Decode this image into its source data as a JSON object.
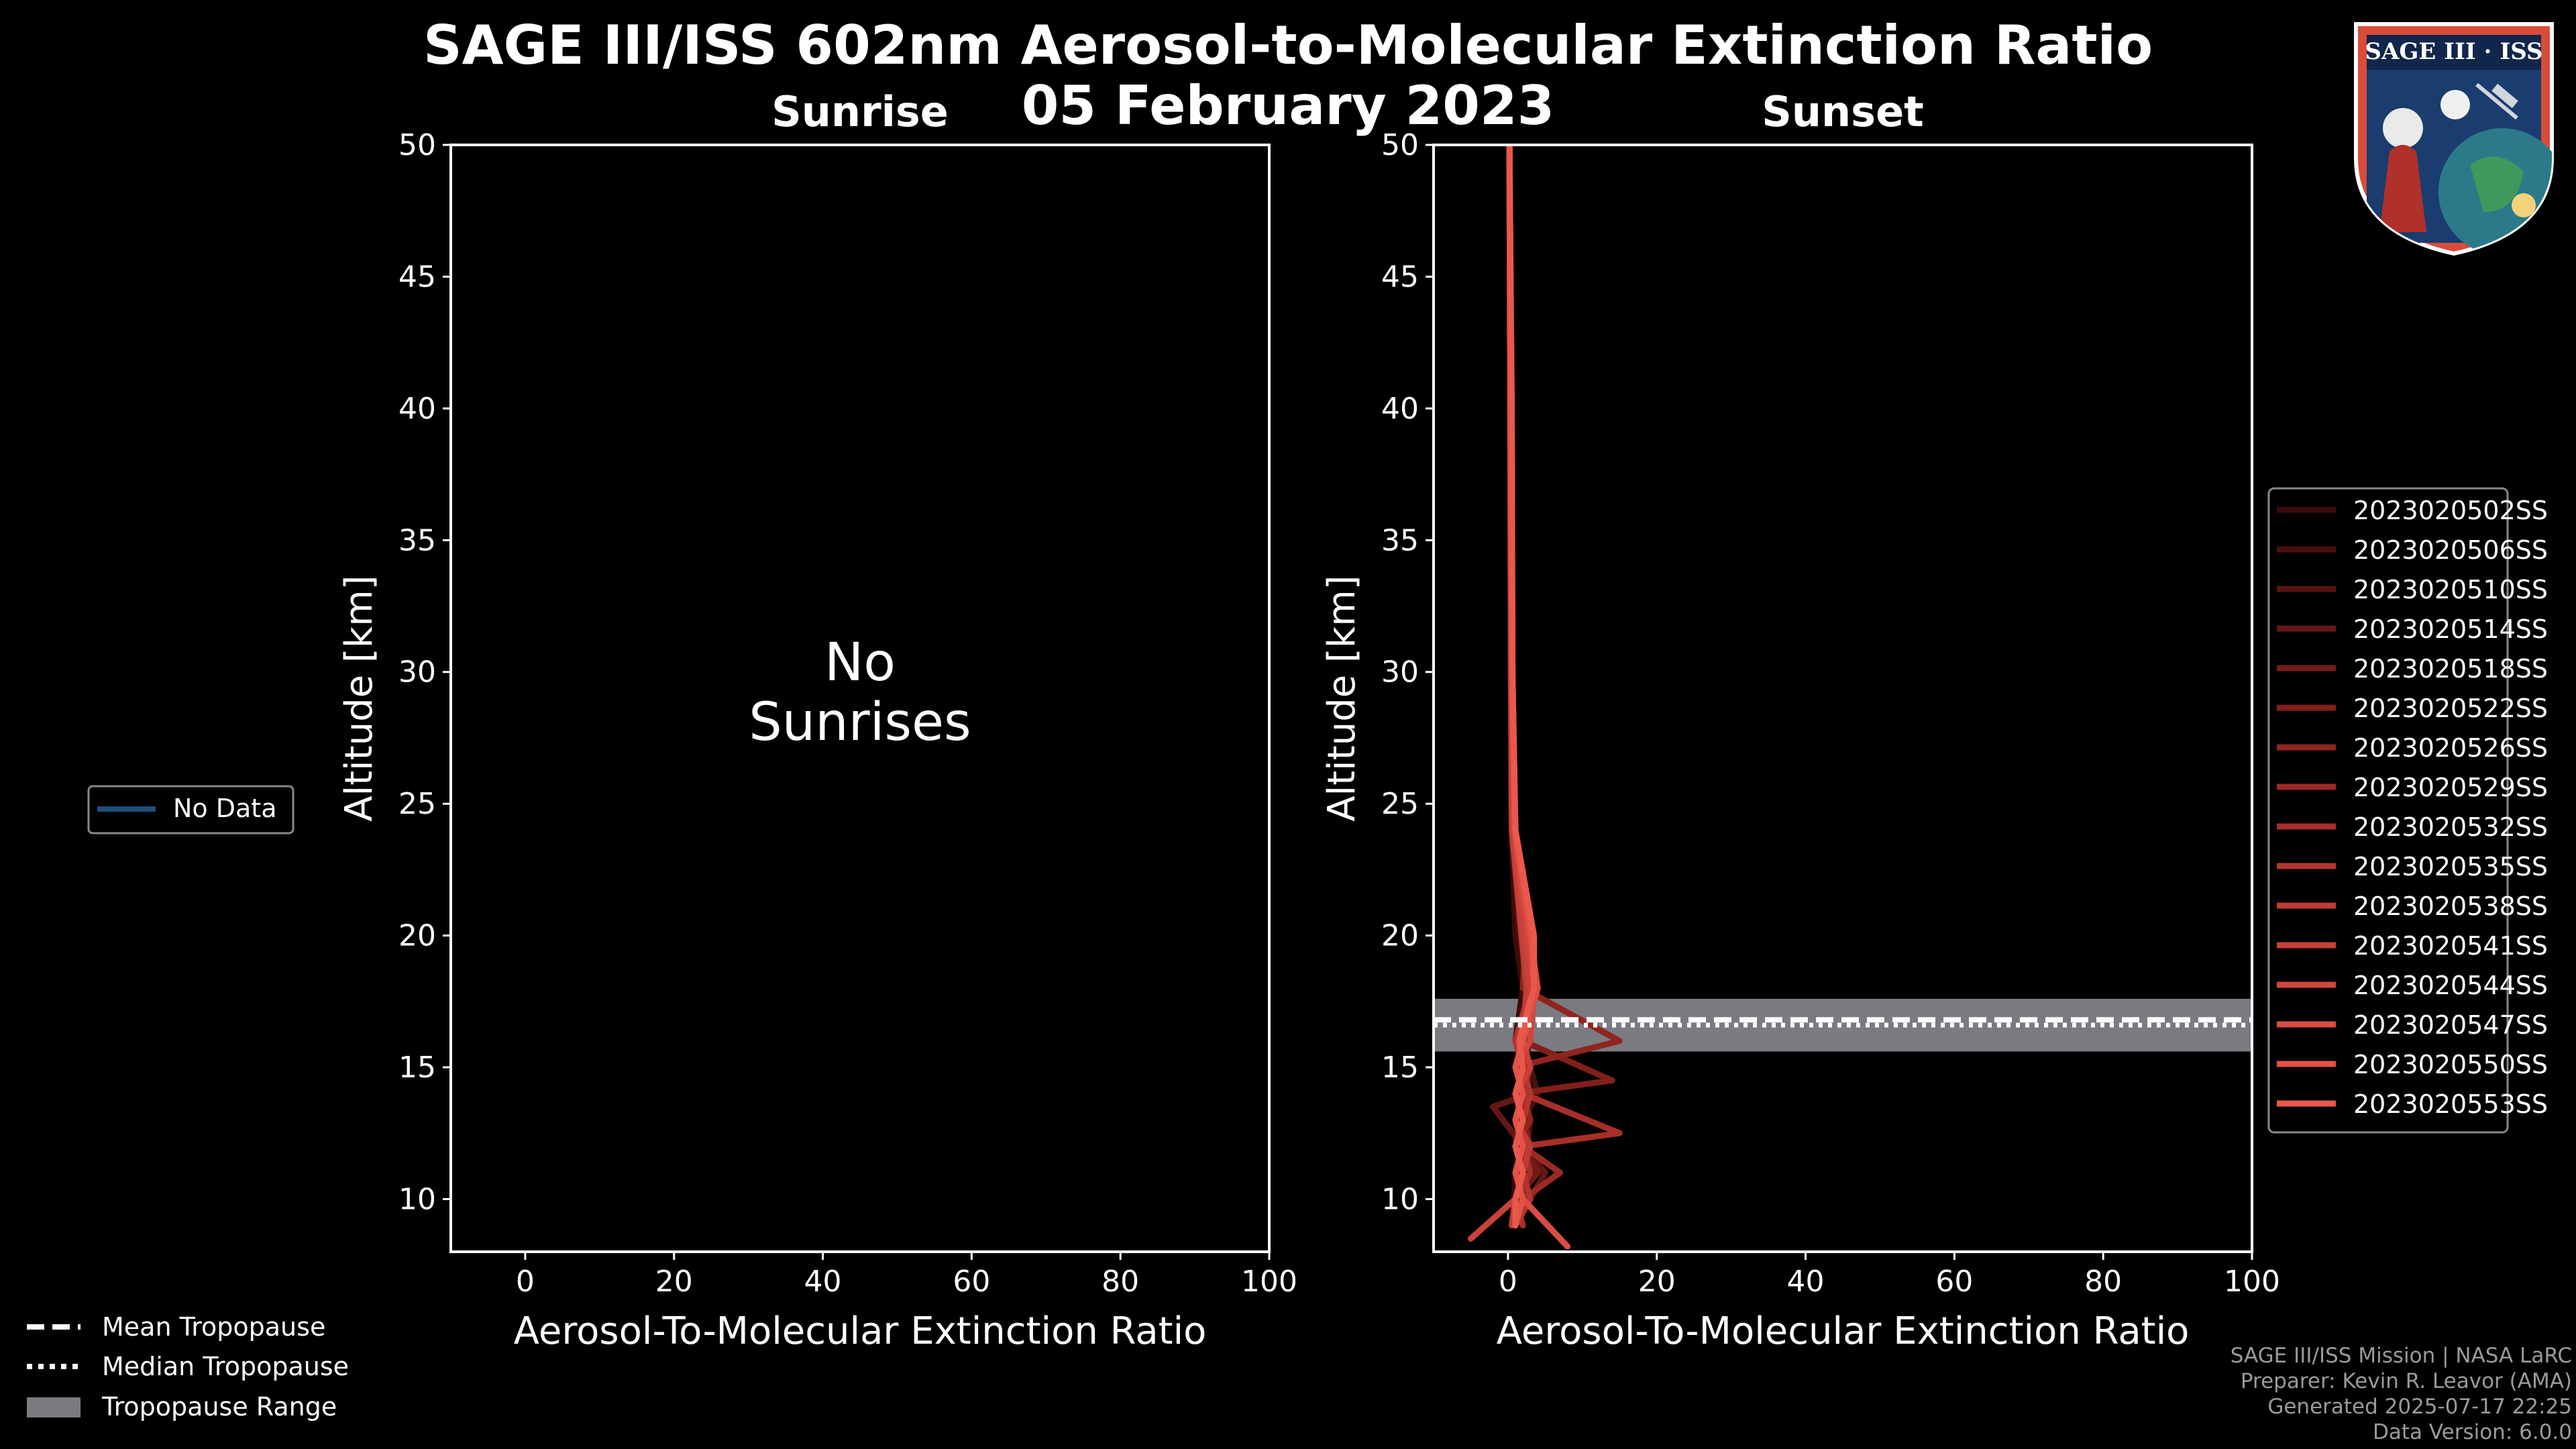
{
  "title_line1": "SAGE III/ISS 602nm Aerosol-to-Molecular Extinction Ratio",
  "title_line2": "05 February 2023",
  "logo": {
    "name": "SAGE III · ISS"
  },
  "footer": {
    "line1": "SAGE III/ISS Mission | NASA LaRC",
    "line2": "Preparer: Kevin R. Leavor (AMA)",
    "line3": "Generated 2025-07-17 22:25",
    "line4": "Data Version: 6.0.0"
  },
  "left_legend": {
    "label": "No Data",
    "color": "#1f4e79"
  },
  "bottom_legend": {
    "mean": "Mean Tropopause",
    "median": "Median Tropopause",
    "range": "Tropopause Range"
  },
  "chart_data": [
    {
      "type": "line",
      "title": "Sunrise",
      "xlabel": "Aerosol-To-Molecular Extinction Ratio",
      "ylabel": "Altitude [km]",
      "xlim": [
        -10,
        100
      ],
      "ylim": [
        8,
        50
      ],
      "xticks": [
        0,
        20,
        40,
        60,
        80,
        100
      ],
      "yticks": [
        10,
        15,
        20,
        25,
        30,
        35,
        40,
        45,
        50
      ],
      "annotation_line1": "No",
      "annotation_line2": "Sunrises",
      "series": []
    },
    {
      "type": "line",
      "title": "Sunset",
      "xlabel": "Aerosol-To-Molecular Extinction Ratio",
      "ylabel": "Altitude [km]",
      "xlim": [
        -10,
        100
      ],
      "ylim": [
        8,
        50
      ],
      "xticks": [
        0,
        20,
        40,
        60,
        80,
        100
      ],
      "yticks": [
        10,
        15,
        20,
        25,
        30,
        35,
        40,
        45,
        50
      ],
      "tropopause": {
        "mean": 16.8,
        "median": 16.6,
        "range": [
          15.6,
          17.6
        ]
      },
      "legend_placement": "right",
      "series": [
        {
          "name": "2023020502SS",
          "color": "#3a0b0b",
          "x": [
            0.5,
            0.8,
            1.0,
            1.5,
            2.0,
            2.5,
            3.0,
            1.0,
            2.0,
            1.0,
            0.5,
            0.5,
            0.3,
            0.2
          ],
          "y": [
            9,
            10,
            11,
            12,
            13,
            14,
            15,
            16,
            18,
            20,
            24,
            30,
            40,
            50
          ]
        },
        {
          "name": "2023020506SS",
          "color": "#470f0e",
          "x": [
            1.0,
            1.5,
            2.0,
            3.0,
            2.0,
            4.0,
            3.0,
            1.2,
            2.5,
            1.5,
            0.5,
            0.4,
            0.3,
            0.2
          ],
          "y": [
            9,
            10,
            11,
            12,
            13,
            14,
            15,
            16,
            18,
            20,
            24,
            30,
            40,
            50
          ]
        },
        {
          "name": "2023020510SS",
          "color": "#561311",
          "x": [
            0.8,
            2.0,
            1.5,
            2.5,
            3.0,
            2.0,
            1.5,
            3.0,
            3.0,
            1.8,
            0.6,
            0.5,
            0.3,
            0.2
          ],
          "y": [
            9,
            10,
            11,
            12,
            13,
            14,
            15,
            16,
            18,
            20,
            24,
            30,
            40,
            50
          ]
        },
        {
          "name": "2023020514SS",
          "color": "#641715",
          "x": [
            1.0,
            3.0,
            5.0,
            2.0,
            -2.0,
            3.0,
            2.0,
            2.0,
            3.5,
            2.0,
            0.6,
            0.5,
            0.4,
            0.2
          ],
          "y": [
            9,
            10,
            11,
            12,
            13.5,
            14,
            15,
            16,
            18,
            20,
            24,
            30,
            40,
            50
          ]
        },
        {
          "name": "2023020518SS",
          "color": "#731b18",
          "x": [
            2.0,
            1.0,
            4.0,
            2.0,
            1.0,
            3.0,
            2.0,
            3.0,
            3.0,
            2.2,
            0.5,
            0.5,
            0.3,
            0.2
          ],
          "y": [
            9,
            10,
            11,
            12,
            13,
            14,
            15,
            16,
            18,
            20,
            24,
            30,
            40,
            50
          ]
        },
        {
          "name": "2023020522SS",
          "color": "#821f1b",
          "x": [
            1.0,
            2.0,
            1.0,
            3.0,
            2.0,
            1.0,
            14.0,
            2.0,
            3.0,
            2.5,
            0.7,
            0.5,
            0.4,
            0.2
          ],
          "y": [
            9,
            10,
            11,
            12,
            13,
            14,
            14.5,
            16,
            18,
            20,
            24,
            30,
            40,
            50
          ]
        },
        {
          "name": "2023020526SS",
          "color": "#90241f",
          "x": [
            0.5,
            1.0,
            2.0,
            1.0,
            3.0,
            2.0,
            1.0,
            15.0,
            2.0,
            2.4,
            0.8,
            0.5,
            0.4,
            0.2
          ],
          "y": [
            9,
            10,
            11,
            12,
            13,
            14,
            15,
            16,
            18,
            20,
            24,
            30,
            40,
            50
          ]
        },
        {
          "name": "2023020529SS",
          "color": "#9c2a24",
          "x": [
            1.0,
            2.0,
            7.0,
            2.0,
            1.0,
            2.0,
            3.0,
            2.0,
            3.0,
            2.0,
            0.6,
            0.4,
            0.3,
            0.2
          ],
          "y": [
            9,
            10,
            11,
            12,
            13,
            14,
            15,
            16,
            18,
            20,
            24,
            30,
            40,
            50
          ]
        },
        {
          "name": "2023020532SS",
          "color": "#a82f29",
          "x": [
            2.0,
            1.0,
            3.0,
            2.0,
            15.0,
            2.0,
            1.0,
            2.0,
            3.0,
            2.2,
            0.7,
            0.5,
            0.3,
            0.2
          ],
          "y": [
            9,
            10,
            11,
            12,
            12.5,
            14,
            15,
            16,
            18,
            20,
            24,
            30,
            40,
            50
          ]
        },
        {
          "name": "2023020535SS",
          "color": "#b3352e",
          "x": [
            1.0,
            3.0,
            2.0,
            1.0,
            2.0,
            3.0,
            2.0,
            1.0,
            3.0,
            2.4,
            0.6,
            0.5,
            0.4,
            0.2
          ],
          "y": [
            9,
            10,
            11,
            12,
            13,
            14,
            15,
            16,
            18,
            20,
            24,
            30,
            40,
            50
          ]
        },
        {
          "name": "2023020538SS",
          "color": "#be3b33",
          "x": [
            0.5,
            1.0,
            2.0,
            3.0,
            1.0,
            2.0,
            1.0,
            2.0,
            2.5,
            1.8,
            0.5,
            0.4,
            0.3,
            0.2
          ],
          "y": [
            9,
            10,
            11,
            12,
            13,
            14,
            15,
            16,
            18,
            20,
            24,
            30,
            40,
            50
          ]
        },
        {
          "name": "2023020541SS",
          "color": "#c84138",
          "x": [
            -5.0,
            1.0,
            2.0,
            1.0,
            2.0,
            1.0,
            3.0,
            2.0,
            3.0,
            2.0,
            0.7,
            0.5,
            0.3,
            0.2
          ],
          "y": [
            8.5,
            10,
            11,
            12,
            13,
            14,
            15,
            16,
            18,
            20,
            24,
            30,
            40,
            50
          ]
        },
        {
          "name": "2023020544SS",
          "color": "#d1463d",
          "x": [
            1.0,
            2.0,
            1.0,
            2.0,
            1.0,
            2.0,
            1.0,
            3.0,
            3.5,
            2.6,
            0.8,
            0.6,
            0.4,
            0.2
          ],
          "y": [
            9,
            10,
            11,
            12,
            13,
            14,
            15,
            16,
            18,
            20,
            24,
            30,
            40,
            50
          ]
        },
        {
          "name": "2023020547SS",
          "color": "#da4c42",
          "x": [
            8.0,
            2.0,
            1.0,
            2.0,
            1.0,
            2.0,
            1.0,
            2.0,
            4.0,
            3.0,
            0.9,
            0.6,
            0.4,
            0.2
          ],
          "y": [
            8.2,
            10,
            11,
            12,
            13,
            14,
            15,
            16,
            18,
            20,
            24,
            30,
            40,
            50
          ]
        },
        {
          "name": "2023020550SS",
          "color": "#e25247",
          "x": [
            1.0,
            2.0,
            1.0,
            2.0,
            1.0,
            2.0,
            1.0,
            2.0,
            3.5,
            3.2,
            1.0,
            0.6,
            0.5,
            0.2
          ],
          "y": [
            9,
            10,
            11,
            12,
            13,
            14,
            15,
            16,
            18,
            20,
            24,
            30,
            40,
            50
          ]
        },
        {
          "name": "2023020553SS",
          "color": "#ea584c",
          "x": [
            1.0,
            1.0,
            2.0,
            1.0,
            2.0,
            1.0,
            2.0,
            1.5,
            3.5,
            3.5,
            1.0,
            0.6,
            0.5,
            0.2
          ],
          "y": [
            9,
            10,
            11,
            12,
            13,
            14,
            15,
            16,
            18,
            20,
            24,
            30,
            40,
            50
          ]
        }
      ]
    }
  ]
}
